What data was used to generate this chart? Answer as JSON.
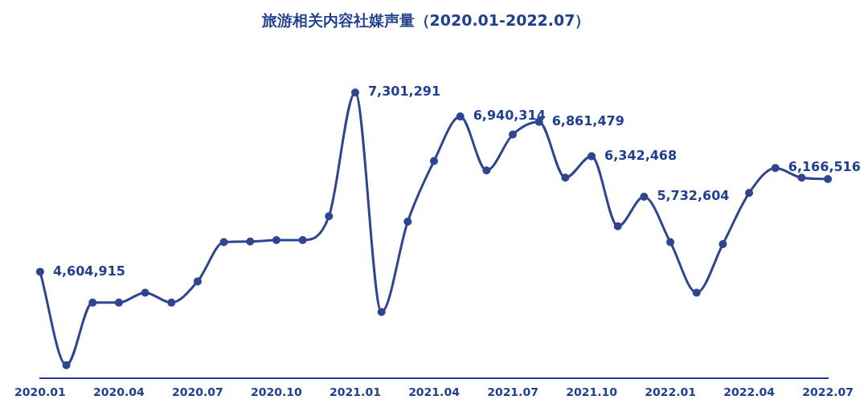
{
  "chart_data": {
    "type": "line",
    "title": "旅游相关内容社媒声量（2020.01-2022.07）",
    "categories": [
      "2020.01",
      null,
      null,
      "2020.04",
      null,
      null,
      "2020.07",
      null,
      null,
      "2020.10",
      null,
      null,
      "2021.01",
      null,
      null,
      "2021.04",
      null,
      null,
      "2021.07",
      null,
      null,
      "2021.10",
      null,
      null,
      "2022.01",
      null,
      null,
      "2022.04",
      null,
      null,
      "2022.07"
    ],
    "series": [
      {
        "color": "#2f4590",
        "values": [
          4604915,
          3200000,
          4140000,
          4140000,
          4290000,
          4140000,
          4460000,
          5050000,
          5060000,
          5080000,
          5080000,
          5440000,
          7301291,
          4000000,
          5360000,
          6270000,
          6940314,
          6130000,
          6670000,
          6861479,
          6020000,
          6342468,
          5290000,
          5732604,
          5050000,
          4290000,
          5020000,
          5790000,
          6166516,
          6020000,
          6000000
        ],
        "value_labels": [
          "4,604,915",
          null,
          null,
          null,
          null,
          null,
          null,
          null,
          null,
          null,
          null,
          null,
          "7,301,291",
          null,
          null,
          null,
          "6,940,314",
          null,
          null,
          "6,861,479",
          null,
          "6,342,468",
          null,
          "5,732,604",
          null,
          null,
          null,
          null,
          "6,166,516",
          null,
          null
        ]
      }
    ],
    "tick_labels": "x",
    "grid": false,
    "legend": false,
    "marker": "circle",
    "line_style": "solid"
  }
}
